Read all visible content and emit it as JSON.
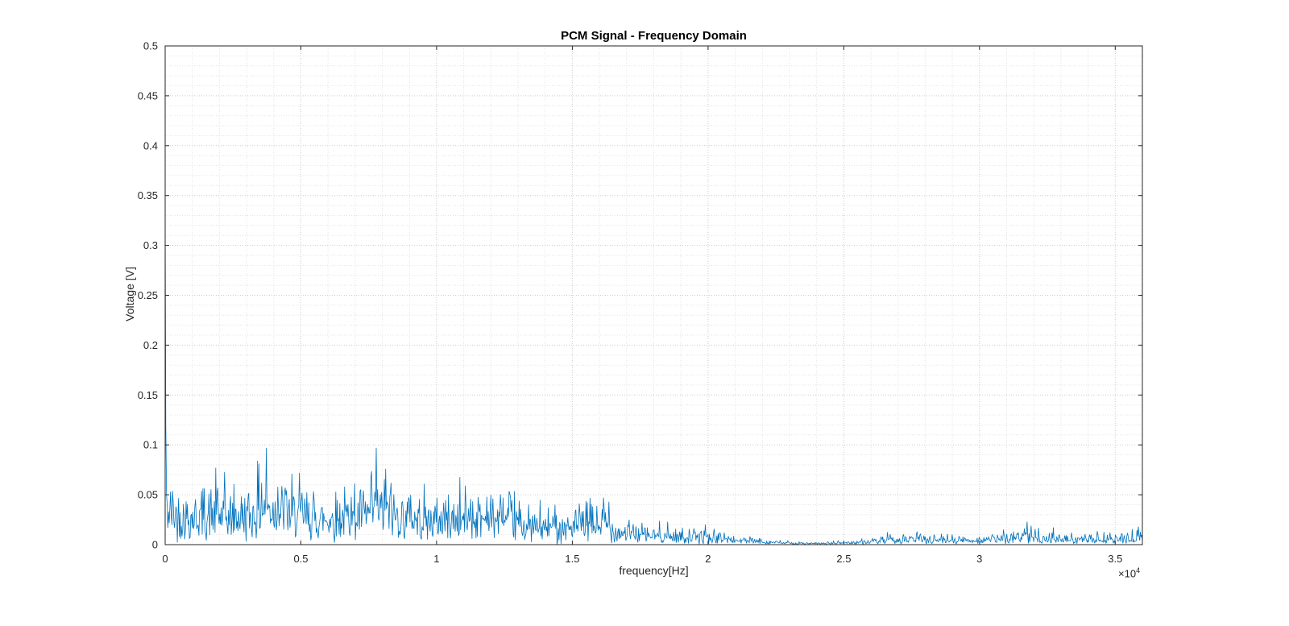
{
  "chart_data": {
    "type": "line",
    "title": "PCM Signal - Frequency Domain",
    "xlabel": "frequency[Hz]",
    "ylabel": "Voltage [V]",
    "x_exponent_base": "×10",
    "x_exponent_power": "4",
    "xlim": [
      0,
      36000
    ],
    "ylim": [
      0,
      0.5
    ],
    "x_ticks": [
      {
        "v": 0,
        "label": "0"
      },
      {
        "v": 5000,
        "label": "0.5"
      },
      {
        "v": 10000,
        "label": "1"
      },
      {
        "v": 15000,
        "label": "1.5"
      },
      {
        "v": 20000,
        "label": "2"
      },
      {
        "v": 25000,
        "label": "2.5"
      },
      {
        "v": 30000,
        "label": "3"
      },
      {
        "v": 35000,
        "label": "3.5"
      }
    ],
    "y_ticks": [
      {
        "v": 0,
        "label": "0"
      },
      {
        "v": 0.05,
        "label": "0.05"
      },
      {
        "v": 0.1,
        "label": "0.1"
      },
      {
        "v": 0.15,
        "label": "0.15"
      },
      {
        "v": 0.2,
        "label": "0.2"
      },
      {
        "v": 0.25,
        "label": "0.25"
      },
      {
        "v": 0.3,
        "label": "0.3"
      },
      {
        "v": 0.35,
        "label": "0.35"
      },
      {
        "v": 0.4,
        "label": "0.4"
      },
      {
        "v": 0.45,
        "label": "0.45"
      },
      {
        "v": 0.5,
        "label": "0.5"
      }
    ],
    "grid": {
      "major": true,
      "minor": true,
      "x_minor_step": 1000,
      "y_minor_step": 0.01
    },
    "line_color": "#0072BD",
    "axis_color": "#262626",
    "spectrum": {
      "n_samples": 1450,
      "seed": 42,
      "dc_decay": [
        0.34,
        0.12,
        0.05
      ],
      "envelope": [
        [
          0,
          0.035
        ],
        [
          800,
          0.028
        ],
        [
          1600,
          0.03
        ],
        [
          2400,
          0.028
        ],
        [
          3200,
          0.03
        ],
        [
          3700,
          0.038
        ],
        [
          4200,
          0.034
        ],
        [
          4800,
          0.03
        ],
        [
          5600,
          0.026
        ],
        [
          6400,
          0.028
        ],
        [
          7200,
          0.028
        ],
        [
          7800,
          0.034
        ],
        [
          8400,
          0.03
        ],
        [
          9200,
          0.026
        ],
        [
          10000,
          0.024
        ],
        [
          10800,
          0.026
        ],
        [
          11600,
          0.028
        ],
        [
          12400,
          0.026
        ],
        [
          13000,
          0.02
        ],
        [
          13800,
          0.017
        ],
        [
          14600,
          0.017
        ],
        [
          15400,
          0.019
        ],
        [
          16200,
          0.021
        ],
        [
          16700,
          0.013
        ],
        [
          17200,
          0.011
        ],
        [
          18000,
          0.009
        ],
        [
          19000,
          0.008
        ],
        [
          20000,
          0.007
        ],
        [
          21000,
          0.0045
        ],
        [
          22000,
          0.003
        ],
        [
          23000,
          0.0015
        ],
        [
          24000,
          0.001
        ],
        [
          25000,
          0.0018
        ],
        [
          26000,
          0.003
        ],
        [
          27000,
          0.0045
        ],
        [
          27800,
          0.0055
        ],
        [
          28600,
          0.005
        ],
        [
          29400,
          0.0045
        ],
        [
          30200,
          0.005
        ],
        [
          31000,
          0.006
        ],
        [
          31700,
          0.009
        ],
        [
          32200,
          0.007
        ],
        [
          33000,
          0.005
        ],
        [
          34000,
          0.005
        ],
        [
          35000,
          0.0055
        ],
        [
          35600,
          0.006
        ],
        [
          36000,
          0.008
        ]
      ],
      "peaks": [
        [
          1950,
          0.057
        ],
        [
          3560,
          0.062
        ],
        [
          3720,
          0.097
        ],
        [
          4150,
          0.058
        ],
        [
          4420,
          0.057
        ],
        [
          5050,
          0.052
        ],
        [
          6850,
          0.048
        ],
        [
          7780,
          0.097
        ],
        [
          8120,
          0.076
        ],
        [
          8330,
          0.062
        ],
        [
          9050,
          0.05
        ],
        [
          10250,
          0.042
        ],
        [
          11250,
          0.046
        ],
        [
          11850,
          0.048
        ],
        [
          12450,
          0.047
        ],
        [
          13050,
          0.044
        ],
        [
          14350,
          0.04
        ],
        [
          15650,
          0.045
        ],
        [
          16150,
          0.047
        ],
        [
          16350,
          0.043
        ],
        [
          17100,
          0.025
        ],
        [
          18200,
          0.018
        ],
        [
          19900,
          0.02
        ],
        [
          20600,
          0.012
        ],
        [
          27700,
          0.013
        ],
        [
          29000,
          0.01
        ],
        [
          31750,
          0.023
        ],
        [
          31900,
          0.019
        ],
        [
          33400,
          0.012
        ],
        [
          34800,
          0.012
        ],
        [
          35850,
          0.018
        ]
      ]
    }
  }
}
